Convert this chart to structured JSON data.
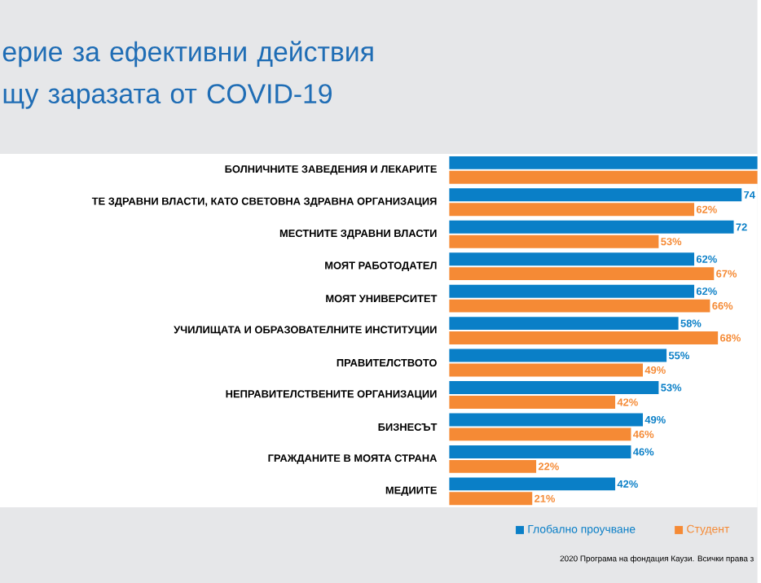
{
  "chart_data": {
    "type": "bar",
    "orientation": "horizontal",
    "title": "ерие за ефективни действия\nщу заразата от COVID-19",
    "categories": [
      "БОЛНИЧНИТЕ ЗАВЕДЕНИЯ И ЛЕКАРИТЕ",
      "ТЕ ЗДРАВНИ ВЛАСТИ, КАТО СВЕТОВНА ЗДРАВНА ОРГАНИЗАЦИЯ",
      "МЕСТНИТЕ ЗДРАВНИ ВЛАСТИ",
      "МОЯТ РАБОТОДАТЕЛ",
      "МОЯТ УНИВЕРСИТЕТ",
      "УЧИЛИЩАТА И ОБРАЗОВАТЕЛНИТЕ ИНСТИТУЦИИ",
      "ПРАВИТЕЛСТВОТО",
      "НЕПРАВИТЕЛСТВЕНИТЕ ОРГАНИЗАЦИИ",
      "БИЗНЕСЪТ",
      "ГРАЖДАНИТЕ В МОЯТА СТРАНА",
      "МЕДИИТЕ"
    ],
    "series": [
      {
        "name": "Глобално проучване",
        "color": "#0a7fc7",
        "values": [
          78,
          74,
          72,
          62,
          62,
          58,
          55,
          53,
          49,
          46,
          42
        ],
        "value_labels": [
          null,
          "74",
          "72",
          "62%",
          "62%",
          "58%",
          "55%",
          "53%",
          "49%",
          "46%",
          "42%"
        ]
      },
      {
        "name": "Студент",
        "color": "#f58a35",
        "values": [
          78,
          62,
          53,
          67,
          66,
          68,
          49,
          42,
          46,
          22,
          21
        ],
        "value_labels": [
          null,
          "62%",
          "53%",
          "67%",
          "66%",
          "68%",
          "49%",
          "42%",
          "46%",
          "22%",
          "21%"
        ]
      }
    ],
    "tick_labels": "y",
    "legend": "bottom right",
    "annotations": [
      "2020 Програма на фондация Каузи. Всички права з"
    ]
  }
}
